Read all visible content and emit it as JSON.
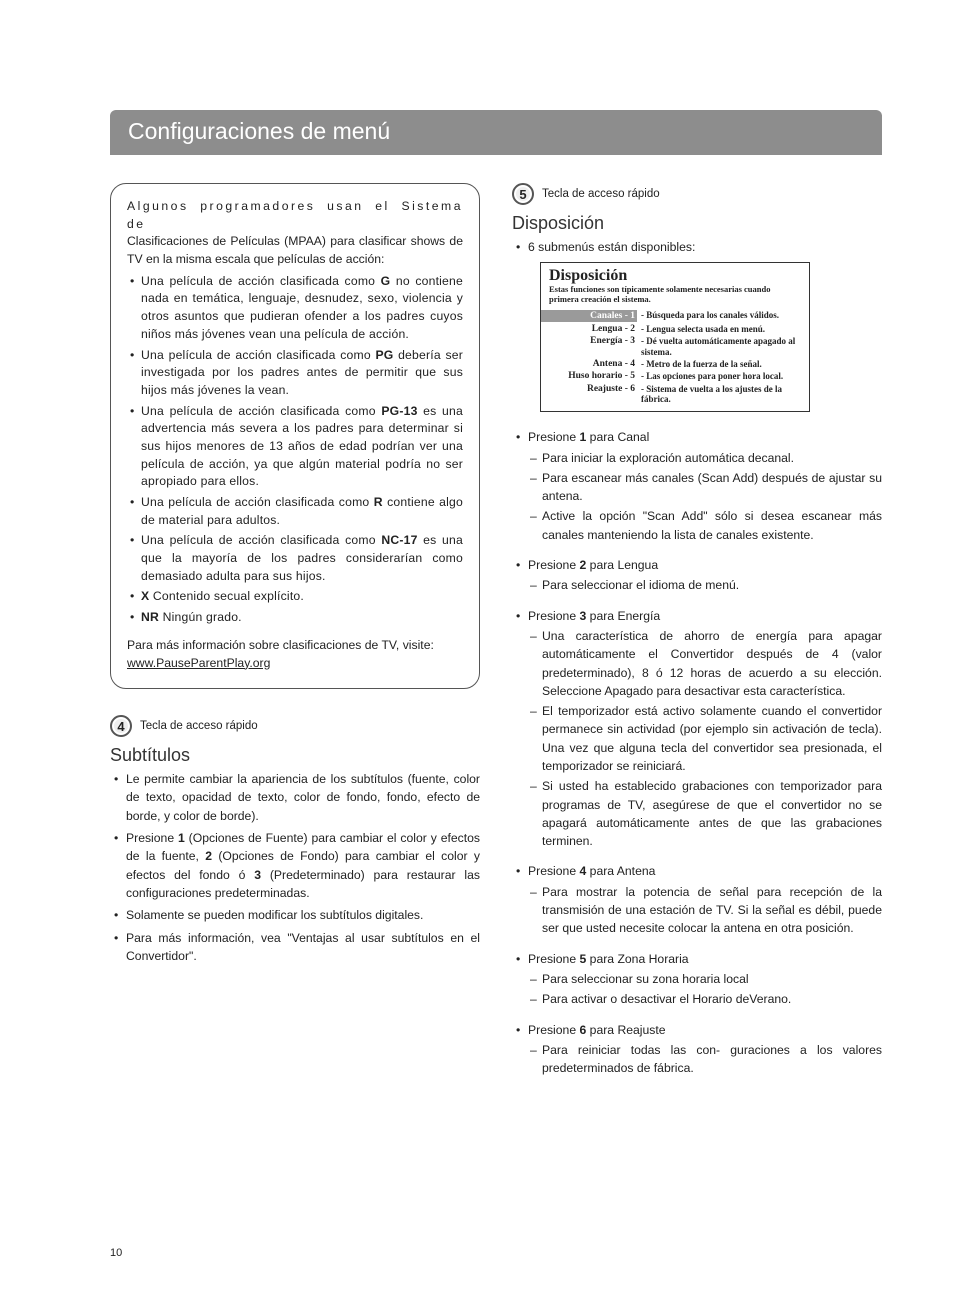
{
  "title": "Configuraciones de menú",
  "page_number": "10",
  "colors": {
    "title_bar_bg": "#8d8d8d",
    "title_bar_text": "#ffffff",
    "body_text": "#222222",
    "box_border": "#555555"
  },
  "mpaa_box": {
    "intro_line1": "Algunos programadores usan el Sistema de",
    "intro_line2": "Clasificaciones de Películas (MPAA) para clasificar shows de TV en la misma escala que películas de acción:",
    "items": [
      {
        "pre": "Una película de acción clasificada como ",
        "b": "G",
        "post": " no contiene nada en temática, lenguaje, desnudez, sexo, violencia y otros asuntos que pudieran ofender a los padres cuyos niños más jóvenes vean una película de acción."
      },
      {
        "pre": "Una película de acción clasificada como ",
        "b": "PG",
        "post": " debería ser investigada por los padres antes de permitir que sus hijos más jóvenes la vean."
      },
      {
        "pre": "Una película de acción clasificada como ",
        "b": "PG-13",
        "post": " es una advertencia más severa a los padres para determinar si sus hijos menores de 13 años de edad podrían ver una película de acción, ya que algún material podría no ser apropiado para ellos."
      },
      {
        "pre": "Una película de acción clasificada como ",
        "b": "R",
        "post": " contiene algo de material para adultos."
      },
      {
        "pre": "Una película de acción clasificada como ",
        "b": "NC-17",
        "post": " es una que la mayoría de los padres considerarían como demasiado adulta para sus hijos."
      },
      {
        "pre": "",
        "b": "X",
        "post": "  Contenido secual explícito."
      },
      {
        "pre": "",
        "b": "NR",
        "post": "  Ningún grado."
      }
    ],
    "footer_pre": "Para más información sobre clasificaciones de TV, visite: ",
    "footer_link": "www.PauseParentPlay.org"
  },
  "hotkey4": {
    "num": "4",
    "label": "Tecla de acceso rápido"
  },
  "hotkey5": {
    "num": "5",
    "label": "Tecla de acceso rápido"
  },
  "subtitulos": {
    "heading": "Subtítulos",
    "items": [
      "Le permite cambiar la apariencia de los subtítulos (fuente, color de texto,  opacidad de texto, color de fondo, fondo, efecto de borde, y color de borde).",
      {
        "parts": [
          "Presione ",
          {
            "b": "1"
          },
          " (Opciones de Fuente) para cambiar el color y efectos de la fuente, ",
          {
            "b": "2"
          },
          " (Opciones de Fondo) para cambiar el color y efectos del fondo ó ",
          {
            "b": "3"
          },
          " (Predeterminado) para restaurar las configuraciones predeterminadas."
        ]
      },
      "Solamente se pueden modificar los subtítulos digitales.",
      "Para más información, vea \"Ventajas al usar subtítulos en el Convertidor\"."
    ]
  },
  "disposicion": {
    "heading": "Disposición",
    "intro": "6 submenús están disponibles:",
    "menu": {
      "title": "Disposición",
      "subtitle": "Estas funciones son típicamente solamente necesarias cuando primera creación el sistema.",
      "rows": [
        {
          "label": "Canales - 1",
          "desc": "Búsqueda para los canales válidos.",
          "hl": true
        },
        {
          "label": "Lengua - 2",
          "desc": "Lengua selecta usada en menú."
        },
        {
          "label": "Energía - 3",
          "desc": "Dé vuelta automáticamente apagado al sistema."
        },
        {
          "label": "Antena - 4",
          "desc": "Metro de la fuerza de la señal."
        },
        {
          "label": "Huso horario - 5",
          "desc": "Las opciones para poner hora local."
        },
        {
          "label": "Reajuste - 6",
          "desc": "Sistema de vuelta a los ajustes de la fábrica."
        }
      ]
    },
    "steps": [
      {
        "lead_pre": "Presione ",
        "b": "1",
        "lead_post": " para Canal",
        "subs": [
          "Para iniciar la exploración automática decanal.",
          "Para escanear más canales (Scan Add) después de ajustar su antena.",
          "Active la opción \"Scan Add\" sólo si desea escanear más canales manteniendo la lista de canales existente."
        ]
      },
      {
        "lead_pre": "Presione ",
        "b": "2",
        "lead_post": " para Lengua",
        "subs": [
          "Para seleccionar el idioma de menú."
        ]
      },
      {
        "lead_pre": "Presione ",
        "b": "3",
        "lead_post": " para Energía",
        "subs": [
          "Una característica de ahorro de energía para apagar automáticamente el Convertidor después de 4 (valor predeterminado), 8 ó 12 horas de acuerdo a su elección. Seleccione Apagado para desactivar esta característica.",
          "El temporizador está activo solamente cuando el convertidor permanece sin actividad (por ejemplo sin activación de tecla). Una vez que alguna tecla del convertidor sea presionada, el temporizador se reiniciará.",
          "Si usted ha establecido grabaciones con temporizador para programas de TV, asegúrese de que el convertidor no se apagará automáticamente antes de que las grabaciones terminen."
        ]
      },
      {
        "lead_pre": "Presione ",
        "b": "4",
        "lead_post": " para Antena",
        "subs": [
          "Para mostrar la potencia de señal para recepción de la transmisión de una estación de TV. Si la señal es débil, puede ser que usted necesite colocar la antena en otra posición."
        ]
      },
      {
        "lead_pre": "Presione ",
        "b": "5",
        "lead_post": " para Zona Horaria",
        "subs": [
          "Para seleccionar su zona horaria local",
          "Para activar o desactivar el Horario deVerano."
        ]
      },
      {
        "lead_pre": "Presione ",
        "b": "6",
        "lead_post": " para Reajuste",
        "subs": [
          "Para reiniciar todas las con- guraciones a los valores predeterminados de fábrica."
        ]
      }
    ]
  }
}
